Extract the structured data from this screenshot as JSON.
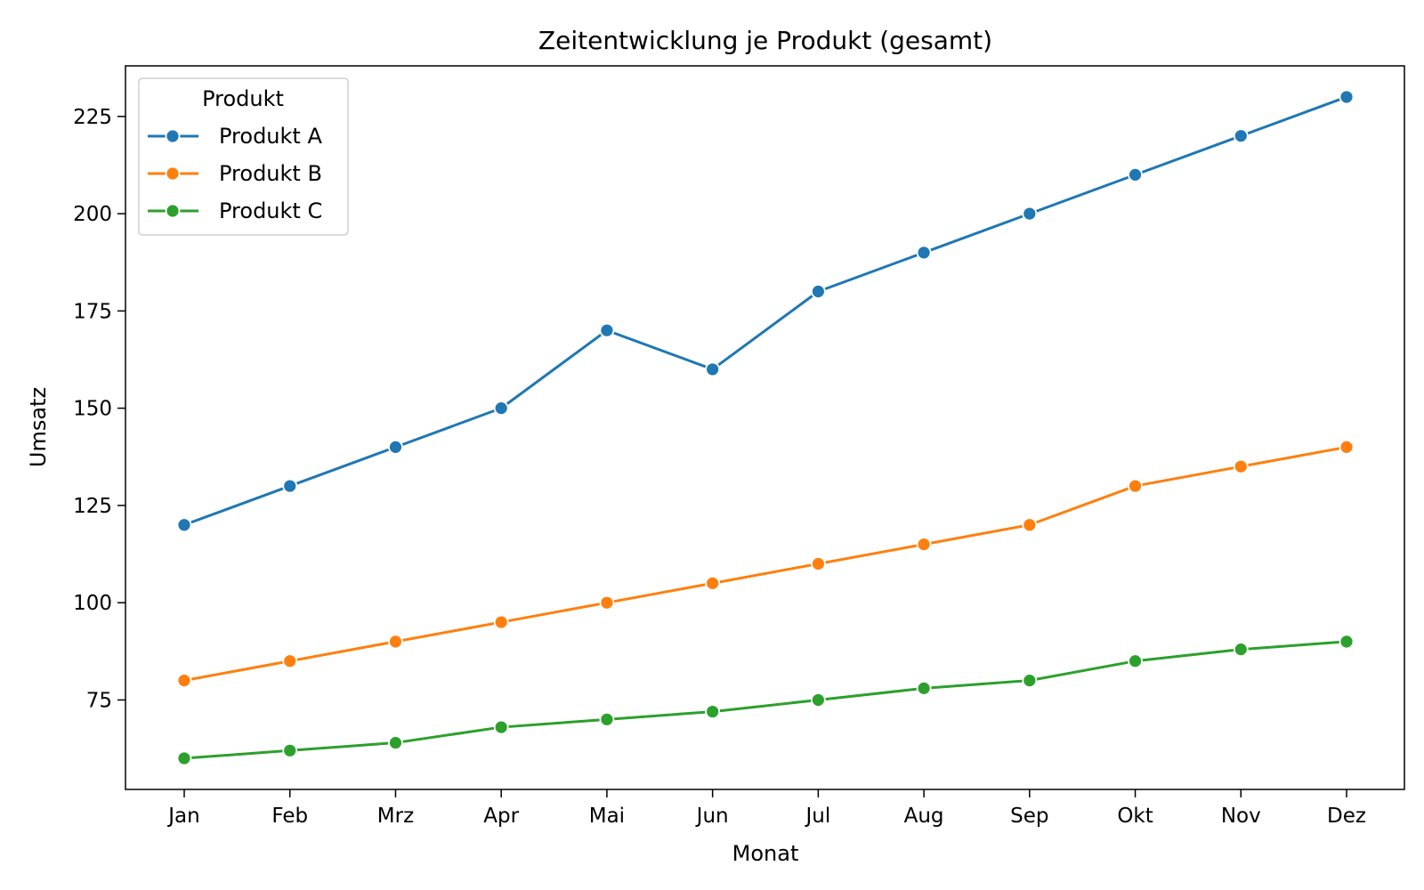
{
  "chart_data": {
    "type": "line",
    "title": "Zeitentwicklung je Produkt (gesamt)",
    "xlabel": "Monat",
    "ylabel": "Umsatz",
    "categories": [
      "Jan",
      "Feb",
      "Mrz",
      "Apr",
      "Mai",
      "Jun",
      "Jul",
      "Aug",
      "Sep",
      "Okt",
      "Nov",
      "Dez"
    ],
    "ylim": [
      52,
      238
    ],
    "yticks": [
      75,
      100,
      125,
      150,
      175,
      200,
      225
    ],
    "grid": false,
    "legend": {
      "title": "Produkt",
      "placement": "top-left"
    },
    "series": [
      {
        "name": "Produkt A",
        "color": "#1f77b4",
        "values": [
          120,
          130,
          140,
          150,
          170,
          160,
          180,
          190,
          200,
          210,
          220,
          230
        ]
      },
      {
        "name": "Produkt B",
        "color": "#ff7f0e",
        "values": [
          80,
          85,
          90,
          95,
          100,
          105,
          110,
          115,
          120,
          130,
          135,
          140
        ]
      },
      {
        "name": "Produkt C",
        "color": "#2ca02c",
        "values": [
          60,
          62,
          64,
          68,
          70,
          72,
          75,
          78,
          80,
          85,
          88,
          90
        ]
      }
    ]
  }
}
